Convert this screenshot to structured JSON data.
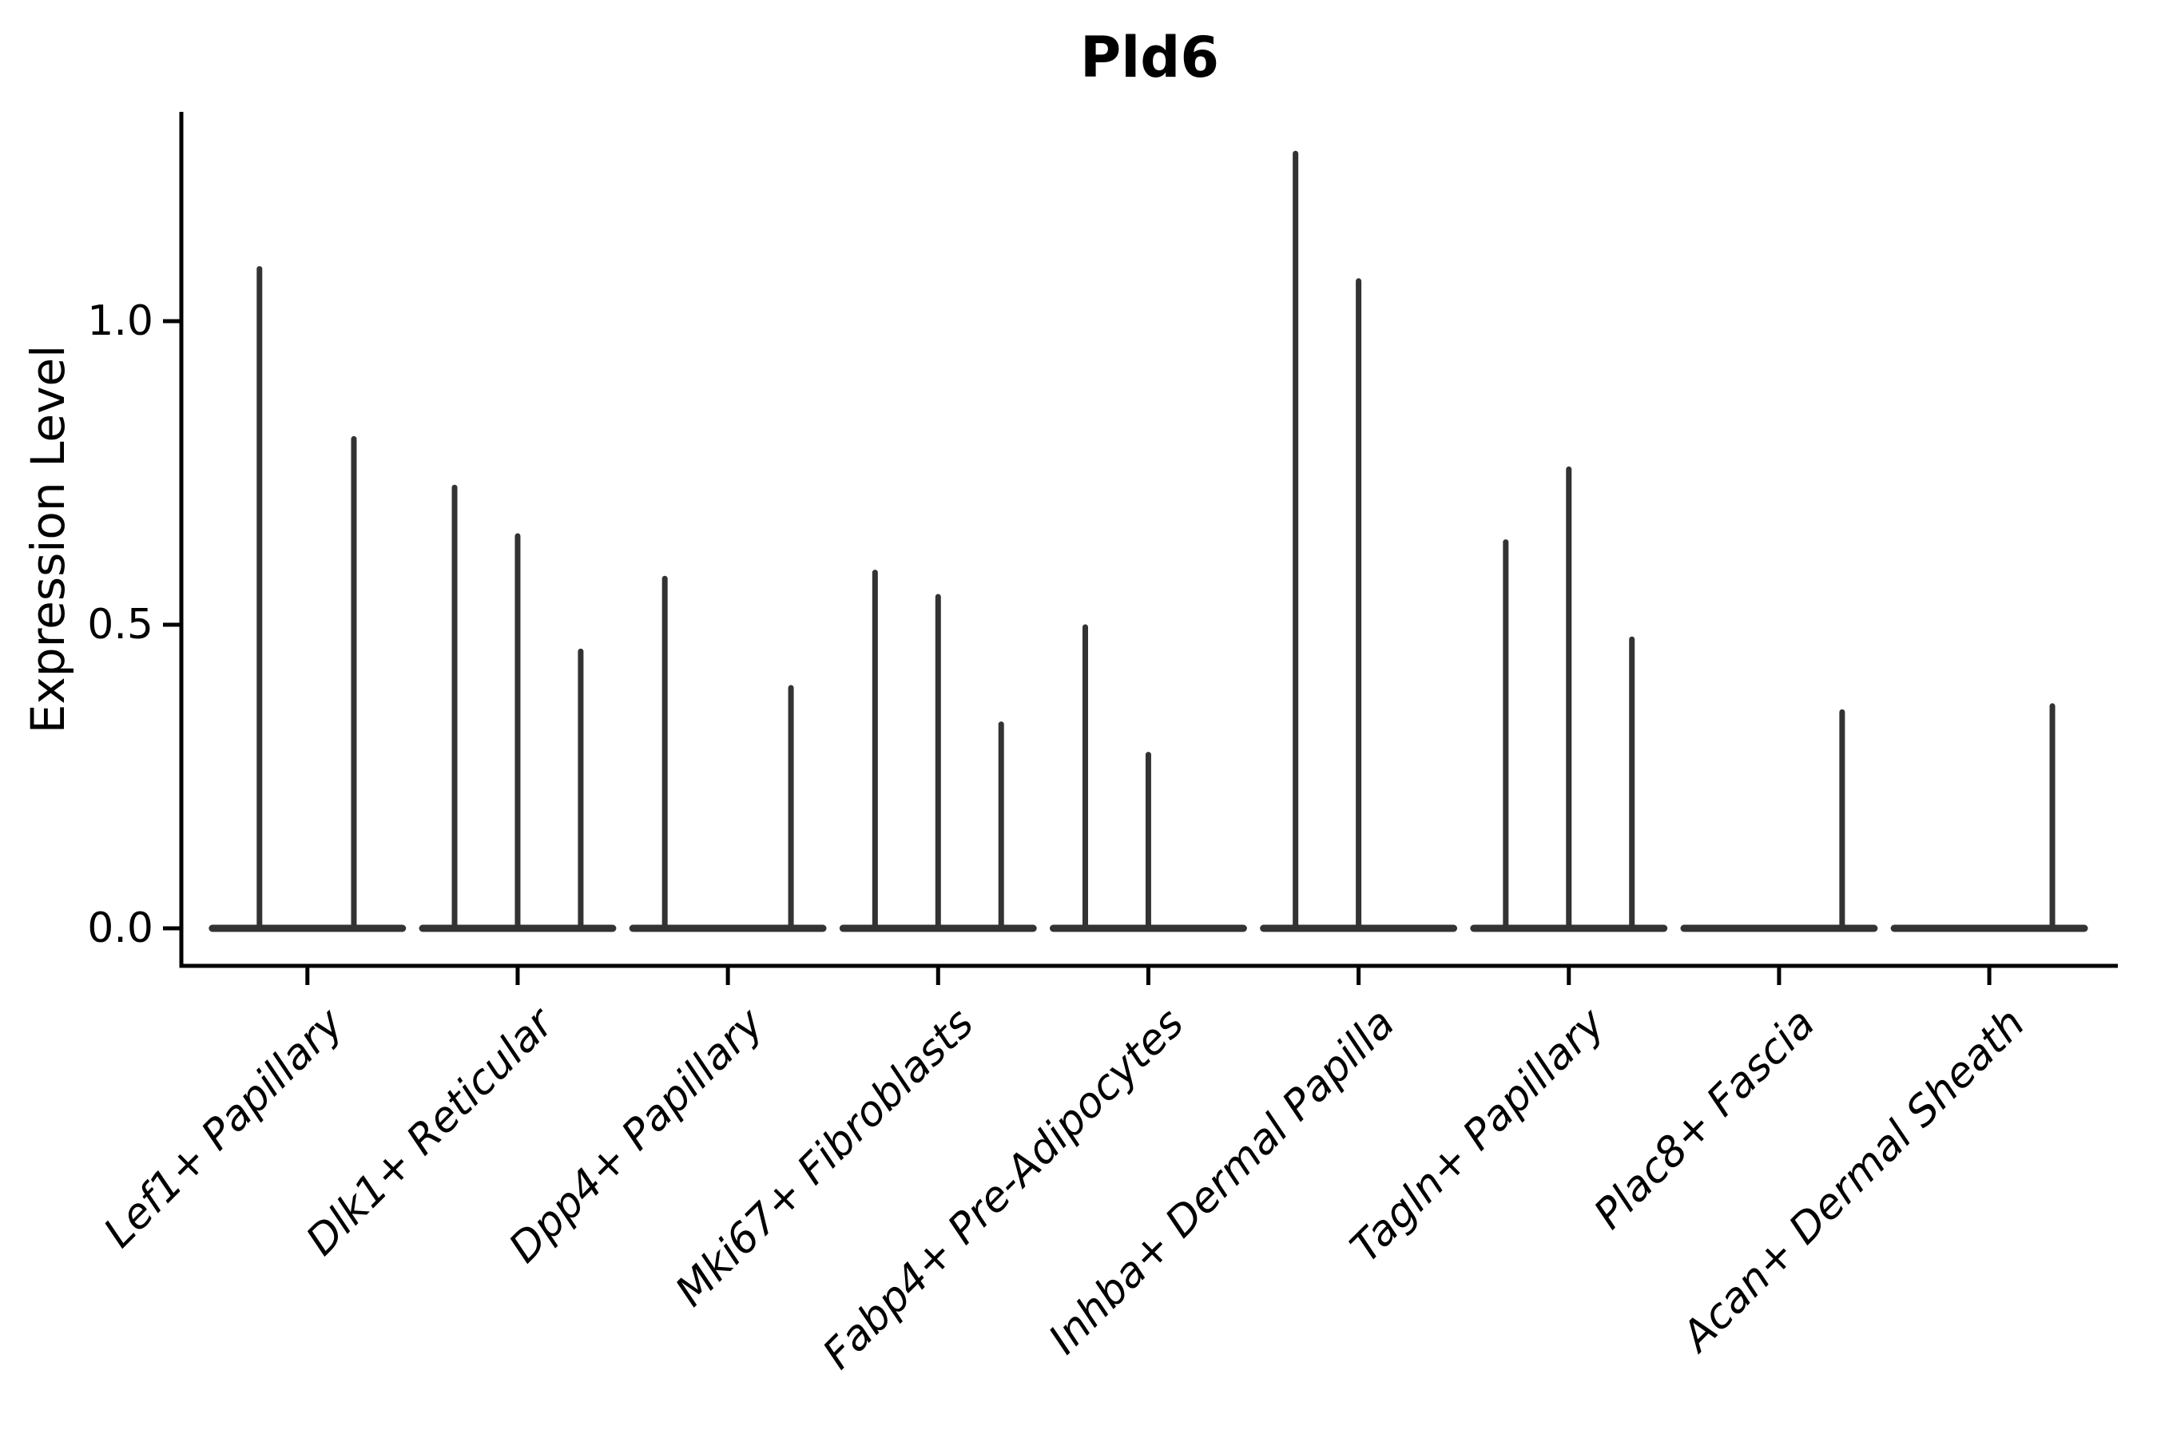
{
  "title": "Pld6",
  "colors": {
    "violin": "#333333",
    "axis": "#000000",
    "text": "#000000",
    "background": "#ffffff"
  },
  "chart_data": {
    "type": "violin",
    "title": "Pld6",
    "xlabel": "",
    "ylabel": "Expression Level",
    "ylim": [
      -0.06,
      1.34
    ],
    "yticks": [
      0.0,
      0.5,
      1.0
    ],
    "ytick_labels": [
      "0.0",
      "0.5",
      "1.0"
    ],
    "grid": false,
    "legend_position": "none",
    "categories": [
      "Lef1+ Papillary",
      "Dlk1+ Reticular",
      "Dpp4+ Papillary",
      "Mki67+ Fibroblasts",
      "Fabp4+ Pre-Adipocytes",
      "Inhba+ Dermal Papilla",
      "Tagln+ Papillary",
      "Plac8+ Fascia",
      "Acan+ Dermal Sheath"
    ],
    "violin_style": "collapsed-at-zero flat base with thin spike to max expression",
    "base_halfwidth_units": 0.452,
    "groups": [
      {
        "label": "Lef1+ Papillary",
        "violins": [
          {
            "offset": -0.228,
            "max": 1.09
          },
          {
            "offset": 0.221,
            "max": 0.81
          }
        ]
      },
      {
        "label": "Dlk1+ Reticular",
        "violins": [
          {
            "offset": -0.3,
            "max": 0.73
          },
          {
            "offset": 0.0,
            "max": 0.65
          },
          {
            "offset": 0.3,
            "max": 0.46
          }
        ]
      },
      {
        "label": "Dpp4+ Papillary",
        "violins": [
          {
            "offset": -0.3,
            "max": 0.58
          },
          {
            "offset": 0.3,
            "max": 0.4
          }
        ]
      },
      {
        "label": "Mki67+ Fibroblasts",
        "violins": [
          {
            "offset": -0.3,
            "max": 0.59
          },
          {
            "offset": 0.0,
            "max": 0.55
          },
          {
            "offset": 0.3,
            "max": 0.34
          }
        ]
      },
      {
        "label": "Fabp4+ Pre-Adipocytes",
        "violins": [
          {
            "offset": -0.3,
            "max": 0.5
          },
          {
            "offset": 0.0,
            "max": 0.29
          }
        ]
      },
      {
        "label": "Inhba+ Dermal Papilla",
        "violins": [
          {
            "offset": -0.3,
            "max": 1.28
          },
          {
            "offset": 0.0,
            "max": 1.07
          }
        ]
      },
      {
        "label": "Tagln+ Papillary",
        "violins": [
          {
            "offset": -0.3,
            "max": 0.64
          },
          {
            "offset": 0.0,
            "max": 0.76
          },
          {
            "offset": 0.3,
            "max": 0.48
          }
        ]
      },
      {
        "label": "Plac8+ Fascia",
        "violins": [
          {
            "offset": 0.3,
            "max": 0.36
          }
        ]
      },
      {
        "label": "Acan+ Dermal Sheath",
        "violins": [
          {
            "offset": 0.3,
            "max": 0.37
          }
        ]
      }
    ]
  }
}
